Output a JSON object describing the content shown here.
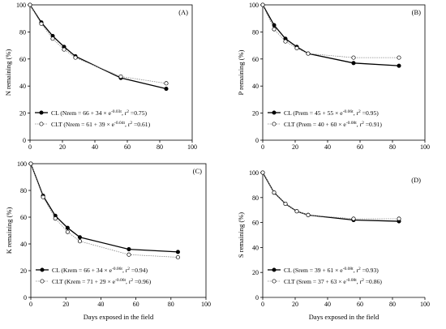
{
  "chart_data": [
    {
      "type": "line",
      "panel_label": "(A)",
      "ylabel": "N remaining (%)",
      "xlabel": "",
      "xlim": [
        0,
        100
      ],
      "ylim": [
        0,
        100
      ],
      "xticks": [
        "0",
        "20",
        "40",
        "60",
        "80",
        "100"
      ],
      "yticks": [
        "0",
        "20",
        "40",
        "60",
        "80",
        "100"
      ],
      "legend_position": "bottom-left",
      "series": [
        {
          "name": "CL",
          "legend_parts": [
            "CL (Nrem = 66 + 34 × e",
            "-0.03t",
            ", r",
            "2",
            " =0.75)"
          ],
          "marker": "filled",
          "x": [
            0,
            7,
            14,
            21,
            28,
            56,
            84
          ],
          "y": [
            100,
            87,
            77,
            69,
            62,
            46,
            38
          ]
        },
        {
          "name": "CLT",
          "legend_parts": [
            "CLT (Nrem = 61 + 39 × e",
            "-0.04t",
            ", r",
            "2",
            " =0.61)"
          ],
          "marker": "open",
          "x": [
            0,
            7,
            14,
            21,
            28,
            56,
            84
          ],
          "y": [
            100,
            86,
            75,
            67,
            61,
            47,
            42
          ]
        }
      ]
    },
    {
      "type": "line",
      "panel_label": "(B)",
      "ylabel": "P remaining (%)",
      "xlabel": "",
      "xlim": [
        0,
        100
      ],
      "ylim": [
        0,
        100
      ],
      "xticks": [
        "0",
        "20",
        "40",
        "60",
        "80",
        "100"
      ],
      "yticks": [
        "0",
        "20",
        "40",
        "60",
        "80",
        "100"
      ],
      "legend_position": "bottom-left",
      "series": [
        {
          "name": "CL",
          "legend_parts": [
            "CL (Prem = 45 + 55 × e",
            "-0.06t",
            ", r",
            "2",
            " =0.95)"
          ],
          "marker": "filled",
          "x": [
            0,
            7,
            14,
            21,
            28,
            56,
            84
          ],
          "y": [
            100,
            85,
            75,
            69,
            64,
            57,
            55
          ]
        },
        {
          "name": "CLT",
          "legend_parts": [
            "CLT (Prem = 40 + 60 × e",
            "-0.08t",
            ", r",
            "2",
            " =0.91)"
          ],
          "marker": "open",
          "x": [
            0,
            7,
            14,
            21,
            28,
            56,
            84
          ],
          "y": [
            100,
            82,
            73,
            68,
            64,
            61,
            61
          ]
        }
      ]
    },
    {
      "type": "line",
      "panel_label": "(C)",
      "ylabel": "K remaining (%)",
      "xlabel": "Days exposed in the field",
      "xlim": [
        0,
        100
      ],
      "ylim": [
        0,
        100
      ],
      "xticks": [
        "0",
        "20",
        "40",
        "60",
        "80",
        "100"
      ],
      "yticks": [
        "0",
        "20",
        "40",
        "60",
        "80",
        "100"
      ],
      "legend_position": "bottom-left",
      "series": [
        {
          "name": "CL",
          "legend_parts": [
            "CL (Krem = 66 + 34 × e",
            "-0.06t",
            ", r",
            "2",
            " =0.94)"
          ],
          "marker": "filled",
          "x": [
            0,
            7,
            14,
            21,
            28,
            56,
            84
          ],
          "y": [
            100,
            76,
            61,
            52,
            45,
            36,
            34
          ]
        },
        {
          "name": "CLT",
          "legend_parts": [
            "CLT (Krem = 71 + 29 × e",
            "-0.06t",
            ", r",
            "2",
            " =0.96)"
          ],
          "marker": "open",
          "x": [
            0,
            7,
            14,
            21,
            28,
            56,
            84
          ],
          "y": [
            100,
            75,
            59,
            49,
            42,
            32,
            30
          ]
        }
      ]
    },
    {
      "type": "line",
      "panel_label": "(D)",
      "ylabel": "S remaining (%)",
      "xlabel": "Days exposed in the field",
      "xlim": [
        0,
        100
      ],
      "ylim": [
        0,
        100
      ],
      "xticks": [
        "0",
        "20",
        "40",
        "60",
        "80",
        "100"
      ],
      "yticks": [
        "0",
        "20",
        "40",
        "60",
        "80",
        "100"
      ],
      "legend_position": "bottom-left",
      "series": [
        {
          "name": "CL",
          "legend_parts": [
            "CL (Srem = 39 + 61 × e",
            "-0.08t",
            ", r",
            "2",
            " =0.93)"
          ],
          "marker": "filled",
          "x": [
            0,
            7,
            14,
            21,
            28,
            56,
            84
          ],
          "y": [
            100,
            84,
            75,
            69,
            66,
            62,
            61
          ]
        },
        {
          "name": "CLT",
          "legend_parts": [
            "CLT (Srem = 37 + 63 × e",
            "-0.08t",
            ", r",
            "2",
            " =0.86)"
          ],
          "marker": "open",
          "x": [
            0,
            7,
            14,
            21,
            28,
            56,
            84
          ],
          "y": [
            100,
            84,
            75,
            69,
            66,
            63,
            63
          ]
        }
      ]
    }
  ]
}
